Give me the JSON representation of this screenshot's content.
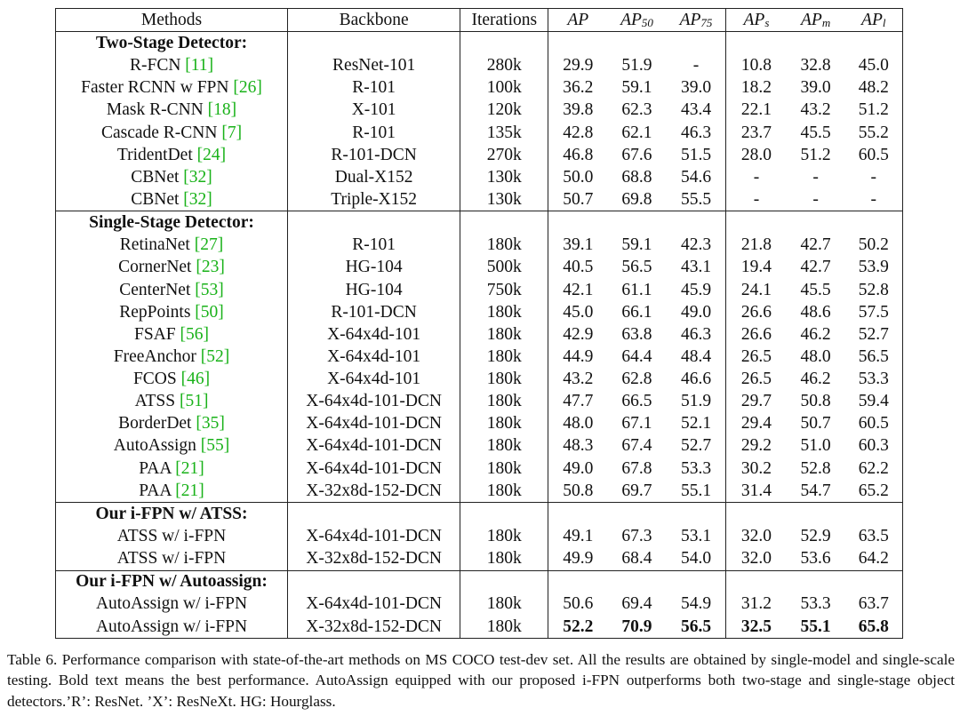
{
  "table": {
    "headers": {
      "methods": "Methods",
      "backbone": "Backbone",
      "iterations": "Iterations",
      "ap": {
        "base": "AP",
        "sub": ""
      },
      "ap50": {
        "base": "AP",
        "sub": "50"
      },
      "ap75": {
        "base": "AP",
        "sub": "75"
      },
      "aps": {
        "base": "AP",
        "sub": "s"
      },
      "apm": {
        "base": "AP",
        "sub": "m"
      },
      "apl": {
        "base": "AP",
        "sub": "l"
      }
    },
    "sections": [
      {
        "title": "Two-Stage Detector:",
        "rows": [
          {
            "method": "R-FCN",
            "cite": "11",
            "backbone": "ResNet-101",
            "iterations": "280k",
            "ap": "29.9",
            "ap50": "51.9",
            "ap75": "-",
            "aps": "10.8",
            "apm": "32.8",
            "apl": "45.0"
          },
          {
            "method": "Faster RCNN w FPN",
            "cite": "26",
            "backbone": "R-101",
            "iterations": "100k",
            "ap": "36.2",
            "ap50": "59.1",
            "ap75": "39.0",
            "aps": "18.2",
            "apm": "39.0",
            "apl": "48.2"
          },
          {
            "method": "Mask R-CNN",
            "cite": "18",
            "backbone": "X-101",
            "iterations": "120k",
            "ap": "39.8",
            "ap50": "62.3",
            "ap75": "43.4",
            "aps": "22.1",
            "apm": "43.2",
            "apl": "51.2"
          },
          {
            "method": "Cascade R-CNN",
            "cite": "7",
            "backbone": "R-101",
            "iterations": "135k",
            "ap": "42.8",
            "ap50": "62.1",
            "ap75": "46.3",
            "aps": "23.7",
            "apm": "45.5",
            "apl": "55.2"
          },
          {
            "method": "TridentDet",
            "cite": "24",
            "backbone": "R-101-DCN",
            "iterations": "270k",
            "ap": "46.8",
            "ap50": "67.6",
            "ap75": "51.5",
            "aps": "28.0",
            "apm": "51.2",
            "apl": "60.5"
          },
          {
            "method": "CBNet",
            "cite": "32",
            "backbone": "Dual-X152",
            "iterations": "130k",
            "ap": "50.0",
            "ap50": "68.8",
            "ap75": "54.6",
            "aps": "-",
            "apm": "-",
            "apl": "-"
          },
          {
            "method": "CBNet",
            "cite": "32",
            "backbone": "Triple-X152",
            "iterations": "130k",
            "ap": "50.7",
            "ap50": "69.8",
            "ap75": "55.5",
            "aps": "-",
            "apm": "-",
            "apl": "-"
          }
        ]
      },
      {
        "title": "Single-Stage Detector:",
        "rows": [
          {
            "method": "RetinaNet",
            "cite": "27",
            "backbone": "R-101",
            "iterations": "180k",
            "ap": "39.1",
            "ap50": "59.1",
            "ap75": "42.3",
            "aps": "21.8",
            "apm": "42.7",
            "apl": "50.2"
          },
          {
            "method": "CornerNet",
            "cite": "23",
            "backbone": "HG-104",
            "iterations": "500k",
            "ap": "40.5",
            "ap50": "56.5",
            "ap75": "43.1",
            "aps": "19.4",
            "apm": "42.7",
            "apl": "53.9"
          },
          {
            "method": "CenterNet",
            "cite": "53",
            "backbone": "HG-104",
            "iterations": "750k",
            "ap": "42.1",
            "ap50": "61.1",
            "ap75": "45.9",
            "aps": "24.1",
            "apm": "45.5",
            "apl": "52.8"
          },
          {
            "method": "RepPoints",
            "cite": "50",
            "backbone": "R-101-DCN",
            "iterations": "180k",
            "ap": "45.0",
            "ap50": "66.1",
            "ap75": "49.0",
            "aps": "26.6",
            "apm": "48.6",
            "apl": "57.5"
          },
          {
            "method": "FSAF",
            "cite": "56",
            "backbone": "X-64x4d-101",
            "iterations": "180k",
            "ap": "42.9",
            "ap50": "63.8",
            "ap75": "46.3",
            "aps": "26.6",
            "apm": "46.2",
            "apl": "52.7"
          },
          {
            "method": "FreeAnchor",
            "cite": "52",
            "backbone": "X-64x4d-101",
            "iterations": "180k",
            "ap": "44.9",
            "ap50": "64.4",
            "ap75": "48.4",
            "aps": "26.5",
            "apm": "48.0",
            "apl": "56.5"
          },
          {
            "method": "FCOS",
            "cite": "46",
            "backbone": "X-64x4d-101",
            "iterations": "180k",
            "ap": "43.2",
            "ap50": "62.8",
            "ap75": "46.6",
            "aps": "26.5",
            "apm": "46.2",
            "apl": "53.3"
          },
          {
            "method": "ATSS",
            "cite": "51",
            "backbone": "X-64x4d-101-DCN",
            "iterations": "180k",
            "ap": "47.7",
            "ap50": "66.5",
            "ap75": "51.9",
            "aps": "29.7",
            "apm": "50.8",
            "apl": "59.4"
          },
          {
            "method": "BorderDet",
            "cite": "35",
            "backbone": "X-64x4d-101-DCN",
            "iterations": "180k",
            "ap": "48.0",
            "ap50": "67.1",
            "ap75": "52.1",
            "aps": "29.4",
            "apm": "50.7",
            "apl": "60.5"
          },
          {
            "method": "AutoAssign",
            "cite": "55",
            "backbone": "X-64x4d-101-DCN",
            "iterations": "180k",
            "ap": "48.3",
            "ap50": "67.4",
            "ap75": "52.7",
            "aps": "29.2",
            "apm": "51.0",
            "apl": "60.3"
          },
          {
            "method": "PAA",
            "cite": "21",
            "backbone": "X-64x4d-101-DCN",
            "iterations": "180k",
            "ap": "49.0",
            "ap50": "67.8",
            "ap75": "53.3",
            "aps": "30.2",
            "apm": "52.8",
            "apl": "62.2"
          },
          {
            "method": "PAA",
            "cite": "21",
            "backbone": "X-32x8d-152-DCN",
            "iterations": "180k",
            "ap": "50.8",
            "ap50": "69.7",
            "ap75": "55.1",
            "aps": "31.4",
            "apm": "54.7",
            "apl": "65.2"
          }
        ]
      },
      {
        "title": "Our i-FPN w/ ATSS:",
        "rows": [
          {
            "method": "ATSS w/ i-FPN",
            "cite": "",
            "backbone": "X-64x4d-101-DCN",
            "iterations": "180k",
            "ap": "49.1",
            "ap50": "67.3",
            "ap75": "53.1",
            "aps": "32.0",
            "apm": "52.9",
            "apl": "63.5"
          },
          {
            "method": "ATSS w/ i-FPN",
            "cite": "",
            "backbone": "X-32x8d-152-DCN",
            "iterations": "180k",
            "ap": "49.9",
            "ap50": "68.4",
            "ap75": "54.0",
            "aps": "32.0",
            "apm": "53.6",
            "apl": "64.2"
          }
        ]
      },
      {
        "title": "Our i-FPN w/ Autoassign:",
        "rows": [
          {
            "method": "AutoAssign w/ i-FPN",
            "cite": "",
            "backbone": "X-64x4d-101-DCN",
            "iterations": "180k",
            "ap": "50.6",
            "ap50": "69.4",
            "ap75": "54.9",
            "aps": "31.2",
            "apm": "53.3",
            "apl": "63.7"
          },
          {
            "method": "AutoAssign w/ i-FPN",
            "cite": "",
            "backbone": "X-32x8d-152-DCN",
            "iterations": "180k",
            "ap": "52.2",
            "ap50": "70.9",
            "ap75": "56.5",
            "aps": "32.5",
            "apm": "55.1",
            "apl": "65.8",
            "bold": true
          }
        ]
      }
    ]
  },
  "caption": "Table 6. Performance comparison with state-of-the-art methods on MS COCO test-dev set. All the results are obtained by single-model and single-scale testing. Bold text means the best performance. AutoAssign equipped with our proposed i-FPN outperforms both two-stage and single-stage object detectors.’R’: ResNet. ’X’: ResNeXt. HG: Hourglass.",
  "colors": {
    "citation": "#19b219",
    "text": "#111111",
    "rule": "#222222"
  }
}
